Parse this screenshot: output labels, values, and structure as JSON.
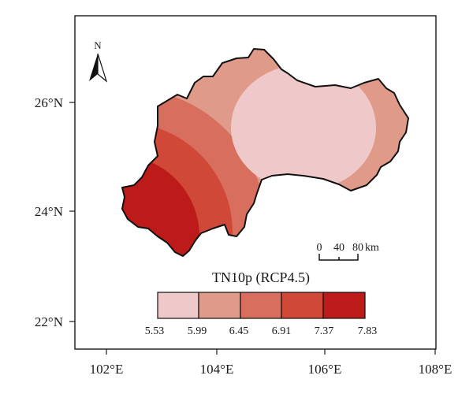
{
  "map": {
    "x_ticks": [
      "102°E",
      "104°E",
      "106°E",
      "108°E"
    ],
    "y_ticks": [
      "26°N",
      "24°N",
      "22°N"
    ],
    "north_label": "N",
    "scale_labels": [
      "0",
      "40",
      "80"
    ],
    "scale_unit": "km",
    "legend_title": "TN10p (RCP4.5)",
    "legend_breaks": [
      "5.53",
      "5.99",
      "6.45",
      "6.91",
      "7.37",
      "7.83"
    ],
    "legend_colors": [
      "#efc9c9",
      "#df9a8a",
      "#d86e5e",
      "#d04838",
      "#bd1a1a"
    ]
  }
}
